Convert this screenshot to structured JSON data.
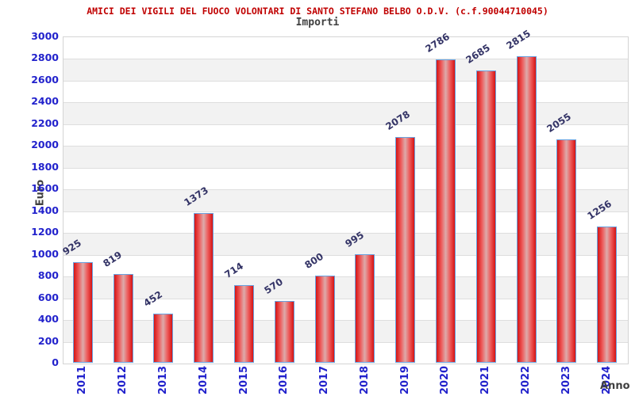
{
  "header": {
    "title": "AMICI DEI VIGILI DEL FUOCO VOLONTARI DI SANTO STEFANO BELBO O.D.V. (c.f.90044710045)",
    "subtitle": "Importi"
  },
  "chart_data": {
    "type": "bar",
    "title": "AMICI DEI VIGILI DEL FUOCO VOLONTARI DI SANTO STEFANO BELBO O.D.V. (c.f.90044710045)",
    "subtitle": "Importi",
    "categories": [
      "2011",
      "2012",
      "2013",
      "2014",
      "2015",
      "2016",
      "2017",
      "2018",
      "2019",
      "2020",
      "2021",
      "2022",
      "2023",
      "2024"
    ],
    "values": [
      925,
      819,
      452,
      1373,
      714,
      570,
      800,
      995,
      2078,
      2786,
      2685,
      2815,
      2055,
      1256
    ],
    "xlabel": "Anno",
    "ylabel": "Euro",
    "ylim": [
      0,
      3000
    ],
    "ytick_step": 200,
    "grid": "horizontal-bands-alternating",
    "legend": "none",
    "bar_value_labels": "rotated-above-bars",
    "x_tick_rotation": -90
  },
  "colors": {
    "title_red": "#c00000",
    "tick_blue": "#2222cc",
    "value_label_navy": "#333366",
    "axis_title_gray": "#404040",
    "bar_edge_red": "#d51414",
    "bar_center_pink": "#ddabab",
    "bar_border_blue": "#68a2e0",
    "band_gray": "#f2f2f2",
    "plot_border_gray": "#d4d4d4"
  }
}
